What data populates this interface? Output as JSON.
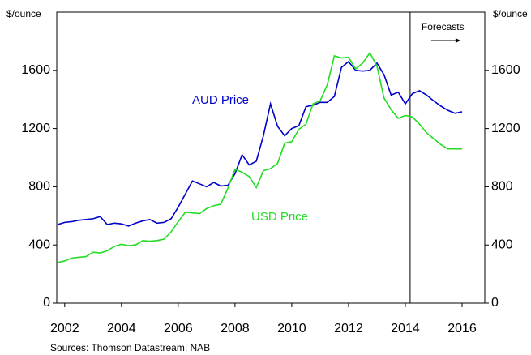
{
  "chart_data": {
    "type": "line",
    "y_label": "$/ounce",
    "y2_label": "$/ounce",
    "source": "Sources: Thomson Datastream; NAB",
    "forecast": {
      "label": "Forecasts",
      "x": 2014.17
    },
    "x": [
      2001.75,
      2002,
      2002.25,
      2002.5,
      2002.75,
      2003,
      2003.25,
      2003.5,
      2003.75,
      2004,
      2004.25,
      2004.5,
      2004.75,
      2005,
      2005.25,
      2005.5,
      2005.75,
      2006,
      2006.25,
      2006.5,
      2006.75,
      2007,
      2007.25,
      2007.5,
      2007.75,
      2008,
      2008.25,
      2008.5,
      2008.75,
      2009,
      2009.25,
      2009.5,
      2009.75,
      2010,
      2010.25,
      2010.5,
      2010.75,
      2011,
      2011.25,
      2011.5,
      2011.75,
      2012,
      2012.25,
      2012.5,
      2012.75,
      2013,
      2013.25,
      2013.5,
      2013.75,
      2014,
      2014.25,
      2014.5,
      2014.75,
      2015,
      2015.25,
      2015.5,
      2015.75,
      2016
    ],
    "series": [
      {
        "name": "AUD Price",
        "color": "#0000cc",
        "values": [
          540,
          555,
          560,
          570,
          575,
          580,
          595,
          540,
          550,
          545,
          530,
          550,
          565,
          575,
          550,
          555,
          580,
          660,
          750,
          840,
          820,
          800,
          830,
          805,
          810,
          890,
          1020,
          950,
          975,
          1150,
          1370,
          1215,
          1150,
          1200,
          1220,
          1350,
          1360,
          1380,
          1380,
          1420,
          1620,
          1660,
          1600,
          1595,
          1600,
          1650,
          1570,
          1430,
          1450,
          1370,
          1440,
          1460,
          1430,
          1390,
          1355,
          1325,
          1305,
          1315
        ]
      },
      {
        "name": "USD Price",
        "color": "#22dd22",
        "values": [
          280,
          290,
          310,
          315,
          320,
          350,
          345,
          360,
          390,
          405,
          395,
          400,
          430,
          425,
          430,
          440,
          490,
          560,
          625,
          620,
          615,
          650,
          670,
          680,
          790,
          920,
          900,
          870,
          795,
          910,
          925,
          960,
          1100,
          1110,
          1195,
          1230,
          1370,
          1390,
          1500,
          1700,
          1685,
          1690,
          1610,
          1650,
          1720,
          1630,
          1410,
          1330,
          1270,
          1290,
          1280,
          1230,
          1170,
          1130,
          1090,
          1060,
          1060,
          1060
        ]
      }
    ],
    "xlim": [
      2001.72,
      2016.8
    ],
    "xticks": [
      2002,
      2004,
      2006,
      2008,
      2010,
      2012,
      2014,
      2016
    ],
    "ylim": [
      0,
      2000
    ],
    "yticks": [
      0,
      400,
      800,
      1200,
      1600
    ],
    "y2lim": [
      0,
      2000
    ],
    "y2ticks": [
      0,
      400,
      800,
      1200,
      1600
    ]
  }
}
